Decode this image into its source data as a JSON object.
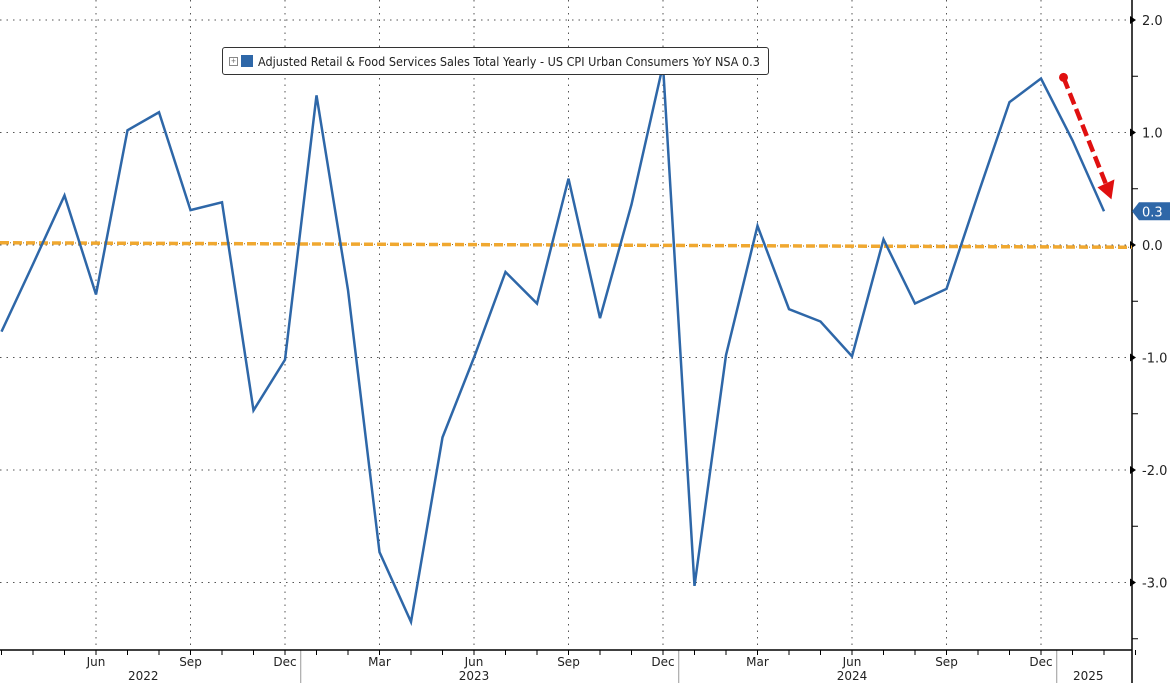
{
  "legend": {
    "label": "Adjusted Retail & Food Services Sales Total Yearly - US CPI Urban Consumers YoY NSA 0.3",
    "expand_icon": "plus-box-icon"
  },
  "colors": {
    "series": "#2e67a8",
    "reference": "#f0a830",
    "arrow": "#e01010",
    "grid": "#555555"
  },
  "last_value_label": "0.3",
  "chart_data": {
    "type": "line",
    "title": "",
    "xlabel": "",
    "ylabel": "",
    "ylim": [
      -3.5,
      2.1
    ],
    "y_ticks": [
      "2.0",
      "1.0",
      "0.0",
      "-1.0",
      "-2.0",
      "-3.0"
    ],
    "y_tick_values": [
      2,
      1,
      0,
      -1,
      -2,
      -3
    ],
    "grid": true,
    "legend_position": "top-center",
    "x_tick_labels": [
      {
        "label": "Jun",
        "month_index": 3
      },
      {
        "label": "Sep",
        "month_index": 6
      },
      {
        "label": "Dec",
        "month_index": 9
      },
      {
        "label": "Mar",
        "month_index": 12
      },
      {
        "label": "Jun",
        "month_index": 15
      },
      {
        "label": "Sep",
        "month_index": 18
      },
      {
        "label": "Dec",
        "month_index": 21
      },
      {
        "label": "Mar",
        "month_index": 24
      },
      {
        "label": "Jun",
        "month_index": 27
      },
      {
        "label": "Sep",
        "month_index": 30
      },
      {
        "label": "Dec",
        "month_index": 33
      }
    ],
    "year_labels": [
      {
        "label": "2022",
        "month_index": 4.5
      },
      {
        "label": "2023",
        "month_index": 15
      },
      {
        "label": "2024",
        "month_index": 27
      },
      {
        "label": "2025",
        "month_index": 34.5
      }
    ],
    "x": [
      "2022-03",
      "2022-04",
      "2022-05",
      "2022-06",
      "2022-07",
      "2022-08",
      "2022-09",
      "2022-10",
      "2022-11",
      "2022-12",
      "2023-01",
      "2023-02",
      "2023-03",
      "2023-04",
      "2023-05",
      "2023-06",
      "2023-07",
      "2023-08",
      "2023-09",
      "2023-10",
      "2023-11",
      "2023-12",
      "2024-01",
      "2024-02",
      "2024-03",
      "2024-04",
      "2024-05",
      "2024-06",
      "2024-07",
      "2024-08",
      "2024-09",
      "2024-10",
      "2024-11",
      "2024-12",
      "2025-01",
      "2025-02"
    ],
    "series": [
      {
        "name": "Adjusted Retail & Food Services Sales Total Yearly - US CPI Urban Consumers YoY NSA",
        "values": [
          -0.77,
          -0.17,
          0.44,
          -0.44,
          1.02,
          1.18,
          0.31,
          0.38,
          -1.47,
          -1.02,
          1.33,
          -0.4,
          -2.73,
          -3.35,
          -1.71,
          -1.0,
          -0.24,
          -0.52,
          0.59,
          -0.65,
          0.36,
          1.6,
          -3.03,
          -0.98,
          0.17,
          -0.57,
          -0.68,
          -0.99,
          0.05,
          -0.52,
          -0.39,
          0.45,
          1.27,
          1.48,
          0.93,
          0.3
        ]
      },
      {
        "name": "Zero reference (dashed)",
        "values_start_end": [
          0.02,
          -0.02
        ]
      }
    ],
    "annotations": [
      {
        "type": "arrow",
        "from_month_index": 34,
        "from_value": 1.48,
        "to_month_index": 35.3,
        "to_value": 0.45
      }
    ]
  }
}
